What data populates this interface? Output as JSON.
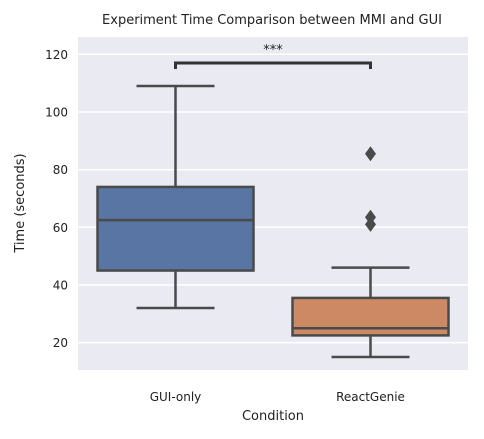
{
  "chart_data": {
    "type": "box",
    "title": "Experiment Time Comparison between MMI and GUI",
    "xlabel": "Condition",
    "ylabel": "Time (seconds)",
    "ylim": [
      10.5,
      126
    ],
    "yticks": [
      20,
      40,
      60,
      80,
      100,
      120
    ],
    "grid": true,
    "categories": [
      "GUI-only",
      "ReactGenie"
    ],
    "boxes": [
      {
        "category": "GUI-only",
        "whisker_low": 32,
        "q1": 45,
        "median": 62.5,
        "q3": 74,
        "whisker_high": 109,
        "outliers": [],
        "color": "#5875a4"
      },
      {
        "category": "ReactGenie",
        "whisker_low": 15,
        "q1": 22.5,
        "median": 25,
        "q3": 35.5,
        "whisker_high": 46,
        "outliers": [
          61,
          63.5,
          85.5
        ],
        "color": "#cc8963"
      }
    ],
    "annotation": {
      "text": "***",
      "between": [
        "GUI-only",
        "ReactGenie"
      ],
      "y": 117
    },
    "colors": {
      "plot_background": "#eaeaf2",
      "grid": "#ffffff",
      "line": "#4a4a4a"
    }
  }
}
